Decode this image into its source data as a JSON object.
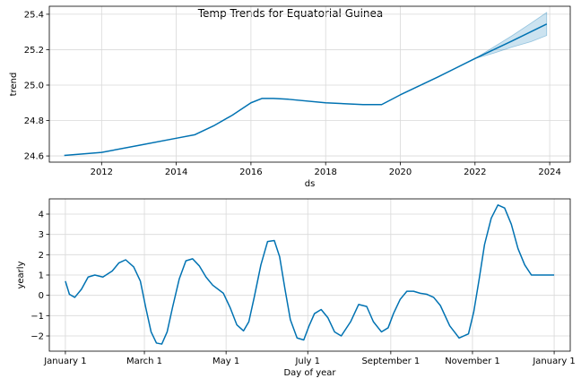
{
  "figure": {
    "title": "Temp Trends for Equatorial Guinea",
    "line_color": "#0072B2",
    "band_color": "#0072B2"
  },
  "chart_data": [
    {
      "type": "line",
      "title": "Temp Trends for Equatorial Guinea",
      "xlabel": "ds",
      "ylabel": "trend",
      "xlim": [
        2010.6,
        2024.55
      ],
      "ylim": [
        24.565,
        25.445
      ],
      "xticks": [
        2012,
        2014,
        2016,
        2018,
        2020,
        2022,
        2024
      ],
      "xtick_labels": [
        "2012",
        "2014",
        "2016",
        "2018",
        "2020",
        "2022",
        "2024"
      ],
      "yticks": [
        24.6,
        24.8,
        25.0,
        25.2,
        25.4
      ],
      "ytick_labels": [
        "24.6",
        "24.8",
        "25.0",
        "25.2",
        "25.4"
      ],
      "grid": true,
      "series": [
        {
          "x": [
            2011.0,
            2012.0,
            2013.0,
            2014.0,
            2014.5,
            2015.0,
            2015.5,
            2016.0,
            2016.3,
            2016.6,
            2017.0,
            2018.0,
            2019.0,
            2019.5,
            2020.0,
            2021.0,
            2022.0,
            2023.0,
            2023.92
          ],
          "y": [
            24.603,
            24.62,
            24.66,
            24.7,
            24.72,
            24.77,
            24.83,
            24.9,
            24.925,
            24.925,
            24.92,
            24.9,
            24.89,
            24.89,
            24.945,
            25.045,
            25.15,
            25.25,
            25.345
          ]
        }
      ],
      "uncertainty_band": {
        "x": [
          2022.0,
          2022.5,
          2023.0,
          2023.5,
          2023.92
        ],
        "lower": [
          25.15,
          25.18,
          25.215,
          25.245,
          25.28
        ],
        "upper": [
          25.15,
          25.215,
          25.28,
          25.35,
          25.41
        ]
      }
    },
    {
      "type": "line",
      "title": "",
      "xlabel": "Day of year",
      "ylabel": "yearly",
      "xlim": [
        -12,
        377
      ],
      "ylim": [
        -2.75,
        4.75
      ],
      "xticks": [
        0,
        59,
        120,
        181,
        243,
        304,
        365
      ],
      "xtick_labels": [
        "January 1",
        "March 1",
        "May 1",
        "July 1",
        "September 1",
        "November 1",
        "January 1"
      ],
      "yticks": [
        -2,
        -1,
        0,
        1,
        2,
        3,
        4
      ],
      "ytick_labels": [
        "−2",
        "−1",
        "0",
        "1",
        "2",
        "3",
        "4"
      ],
      "grid": true,
      "series": [
        {
          "x": [
            0,
            3,
            7,
            12,
            17,
            22,
            28,
            35,
            40,
            45,
            51,
            56,
            60,
            64,
            68,
            72,
            76,
            80,
            85,
            90,
            95,
            100,
            105,
            110,
            118,
            123,
            128,
            133,
            137,
            141,
            146,
            151,
            156,
            160,
            164,
            168,
            173,
            178,
            182,
            186,
            191,
            196,
            201,
            206,
            213,
            219,
            225,
            230,
            236,
            241,
            245,
            250,
            255,
            260,
            265,
            270,
            275,
            280,
            287,
            294,
            301,
            305,
            309,
            313,
            318,
            323,
            328,
            333,
            338,
            343,
            348,
            352,
            356,
            360,
            365
          ],
          "y": [
            0.7,
            0.05,
            -0.1,
            0.3,
            0.9,
            1.0,
            0.9,
            1.2,
            1.6,
            1.75,
            1.4,
            0.7,
            -0.6,
            -1.8,
            -2.35,
            -2.4,
            -1.8,
            -0.6,
            0.8,
            1.7,
            1.8,
            1.45,
            0.9,
            0.5,
            0.1,
            -0.6,
            -1.45,
            -1.75,
            -1.3,
            -0.1,
            1.5,
            2.65,
            2.7,
            1.9,
            0.3,
            -1.2,
            -2.1,
            -2.2,
            -1.5,
            -0.9,
            -0.7,
            -1.1,
            -1.8,
            -2.0,
            -1.3,
            -0.45,
            -0.55,
            -1.3,
            -1.8,
            -1.6,
            -0.9,
            -0.2,
            0.2,
            0.2,
            0.1,
            0.05,
            -0.1,
            -0.5,
            -1.5,
            -2.1,
            -1.9,
            -0.8,
            0.8,
            2.5,
            3.8,
            4.45,
            4.3,
            3.5,
            2.3,
            1.5,
            1.0,
            1.0,
            1.0,
            1.0,
            1.0
          ]
        }
      ]
    }
  ]
}
